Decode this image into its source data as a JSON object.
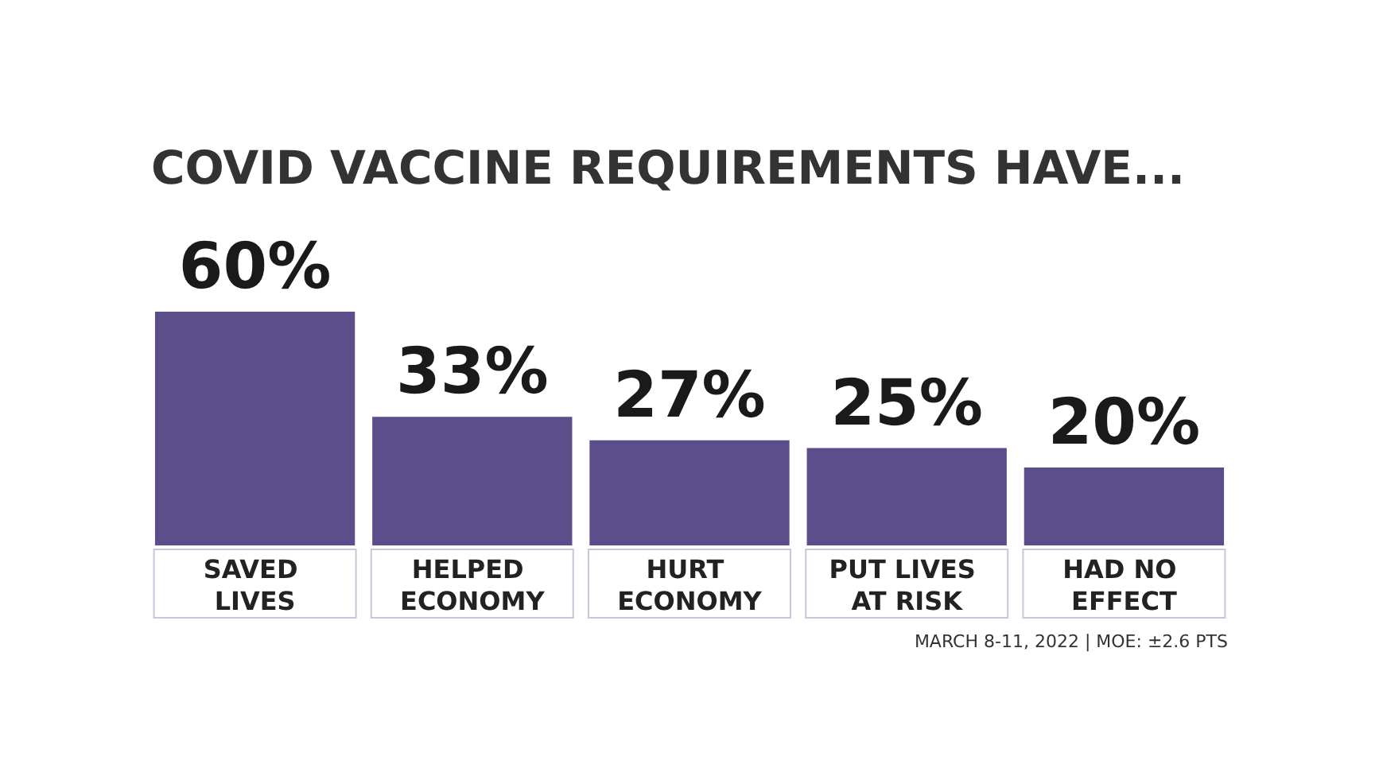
{
  "chart_data": {
    "type": "bar",
    "title": "COVID VACCINE REQUIREMENTS HAVE...",
    "categories": [
      "SAVED LIVES",
      "HELPED ECONOMY",
      "HURT ECONOMY",
      "PUT LIVES AT RISK",
      "HAD NO EFFECT"
    ],
    "values": [
      60,
      33,
      27,
      25,
      20
    ],
    "color": "#5c4e8a",
    "value_labels": [
      "60%",
      "33%",
      "27%",
      "25%",
      "20%"
    ],
    "annotations": [
      "MARCH 8-11, 2022 | MOE: ±2.6 PTS"
    ]
  }
}
